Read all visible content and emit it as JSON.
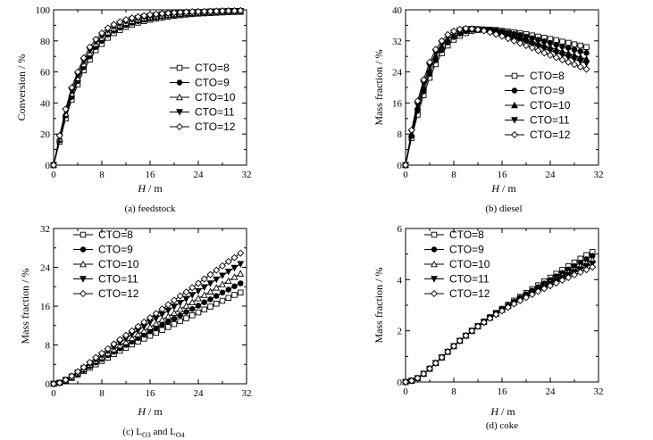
{
  "chart_data": [
    {
      "id": "a",
      "type": "line",
      "ylabel": "Conversion / %",
      "xlabel_italic": "H",
      "xlabel_rest": " / m",
      "caption": "(a) feedstock",
      "caption_sub": [],
      "xlim": [
        0,
        32
      ],
      "ylim": [
        0,
        100
      ],
      "xticks": [
        0,
        8,
        16,
        24,
        32
      ],
      "yticks": [
        0,
        20,
        40,
        60,
        80,
        100
      ],
      "legend_position": "center-right",
      "x": [
        0,
        1,
        2,
        3,
        4,
        5,
        6,
        7,
        8,
        9,
        10,
        11,
        12,
        13,
        14,
        15,
        16,
        17,
        18,
        19,
        20,
        21,
        22,
        23,
        24,
        25,
        26,
        27,
        28,
        29,
        30,
        31
      ],
      "series": [
        {
          "name": "CTO=8",
          "marker": "square-open",
          "values": [
            0,
            15,
            30,
            42,
            52,
            61,
            68,
            74,
            78,
            82,
            85,
            87,
            89,
            90.5,
            91.7,
            92.7,
            93.6,
            94.4,
            95,
            95.6,
            96.1,
            96.5,
            96.9,
            97.2,
            97.5,
            97.7,
            97.9,
            98.1,
            98.3,
            98.5,
            98.6,
            98.7
          ]
        },
        {
          "name": "CTO=9",
          "marker": "circle-filled",
          "values": [
            0,
            16,
            32,
            44,
            54,
            63,
            70,
            76,
            80,
            84,
            86.5,
            88.5,
            90.2,
            91.6,
            92.7,
            93.6,
            94.4,
            95.1,
            95.7,
            96.2,
            96.6,
            97,
            97.3,
            97.6,
            97.8,
            98,
            98.2,
            98.4,
            98.5,
            98.7,
            98.8,
            98.9
          ]
        },
        {
          "name": "CTO=10",
          "marker": "triangle-open",
          "values": [
            0,
            17,
            33,
            46,
            56,
            65,
            72,
            78,
            82,
            85.5,
            88,
            90,
            91.5,
            92.8,
            93.8,
            94.6,
            95.3,
            95.9,
            96.4,
            96.8,
            97.2,
            97.5,
            97.8,
            98,
            98.2,
            98.4,
            98.5,
            98.7,
            98.8,
            98.9,
            99,
            99.1
          ]
        },
        {
          "name": "CTO=11",
          "marker": "triangle-down-filled",
          "values": [
            0,
            18,
            35,
            48,
            58,
            67,
            74,
            79.5,
            83.5,
            87,
            89.3,
            91.1,
            92.6,
            93.8,
            94.7,
            95.5,
            96.1,
            96.6,
            97.1,
            97.4,
            97.7,
            98,
            98.2,
            98.4,
            98.6,
            98.7,
            98.9,
            99,
            99.1,
            99.2,
            99.3,
            99.3
          ]
        },
        {
          "name": "CTO=12",
          "marker": "diamond-open",
          "values": [
            0,
            19,
            36,
            50,
            60,
            69,
            76,
            81,
            85,
            88.3,
            90.5,
            92.2,
            93.6,
            94.7,
            95.5,
            96.2,
            96.8,
            97.2,
            97.6,
            97.9,
            98.2,
            98.4,
            98.6,
            98.8,
            98.9,
            99,
            99.1,
            99.2,
            99.3,
            99.4,
            99.4,
            99.5
          ]
        }
      ]
    },
    {
      "id": "b",
      "type": "line",
      "ylabel": "Mass fraction / %",
      "xlabel_italic": "H",
      "xlabel_rest": " / m",
      "caption": "(b) diesel",
      "caption_sub": [],
      "xlim": [
        0,
        32
      ],
      "ylim": [
        0,
        40
      ],
      "xticks": [
        0,
        8,
        16,
        24,
        32
      ],
      "yticks": [
        0,
        8,
        16,
        24,
        32,
        40
      ],
      "legend_position": "lower-right",
      "x": [
        0,
        1,
        2,
        3,
        4,
        5,
        6,
        7,
        8,
        9,
        10,
        11,
        12,
        13,
        14,
        15,
        16,
        17,
        18,
        19,
        20,
        21,
        22,
        23,
        24,
        25,
        26,
        27,
        28,
        29,
        30
      ],
      "series": [
        {
          "name": "CTO=8",
          "marker": "square-open",
          "values": [
            0,
            7,
            13,
            18,
            22.5,
            26,
            28.8,
            30.8,
            32.3,
            33.3,
            34,
            34.5,
            34.8,
            34.9,
            34.9,
            34.8,
            34.6,
            34.4,
            34.2,
            34,
            33.7,
            33.4,
            33.1,
            32.8,
            32.5,
            32.2,
            31.8,
            31.5,
            31.1,
            30.8,
            30.4
          ]
        },
        {
          "name": "CTO=9",
          "marker": "circle-filled",
          "values": [
            0,
            7.5,
            14,
            19,
            23.5,
            27,
            29.6,
            31.6,
            33,
            33.9,
            34.5,
            34.8,
            35,
            35,
            34.9,
            34.7,
            34.4,
            34.1,
            33.8,
            33.5,
            33.1,
            32.7,
            32.3,
            31.9,
            31.5,
            31,
            30.6,
            30.2,
            29.7,
            29.3,
            28.9
          ]
        },
        {
          "name": "CTO=10",
          "marker": "triangle-filled",
          "values": [
            0,
            8,
            15,
            20,
            24.5,
            28,
            30.5,
            32.3,
            33.6,
            34.4,
            34.8,
            35,
            35,
            34.9,
            34.7,
            34.4,
            34,
            33.6,
            33.2,
            32.8,
            32.3,
            31.8,
            31.3,
            30.8,
            30.3,
            29.8,
            29.3,
            28.8,
            28.3,
            27.8,
            27.3
          ]
        },
        {
          "name": "CTO=11",
          "marker": "triangle-down-filled",
          "values": [
            0,
            8.5,
            15.5,
            21,
            25.5,
            29,
            31.3,
            33,
            34.1,
            34.7,
            35,
            35.1,
            35,
            34.8,
            34.5,
            34.1,
            33.7,
            33.2,
            32.7,
            32.2,
            31.7,
            31.1,
            30.6,
            30,
            29.5,
            28.9,
            28.4,
            27.8,
            27.3,
            26.7,
            26.2
          ]
        },
        {
          "name": "CTO=12",
          "marker": "diamond-open",
          "values": [
            0,
            9,
            16.5,
            22,
            26.5,
            29.8,
            32,
            33.6,
            34.5,
            35,
            35.2,
            35.1,
            34.9,
            34.6,
            34.2,
            33.7,
            33.2,
            32.6,
            32,
            31.4,
            30.8,
            30.2,
            29.5,
            28.9,
            28.3,
            27.7,
            27.1,
            26.5,
            25.9,
            25.3,
            24.7
          ]
        }
      ]
    },
    {
      "id": "c",
      "type": "line",
      "ylabel": "Mass fraction / %",
      "xlabel_italic": "H",
      "xlabel_rest": " / m",
      "caption": "(c) L",
      "caption_sub": [
        "O3",
        " and L",
        "O4"
      ],
      "xlim": [
        0,
        32
      ],
      "ylim": [
        0,
        32
      ],
      "xticks": [
        0,
        8,
        16,
        24,
        32
      ],
      "yticks": [
        0,
        8,
        16,
        24,
        32
      ],
      "legend_position": "top-left",
      "x": [
        0,
        1,
        2,
        3,
        4,
        5,
        6,
        7,
        8,
        9,
        10,
        11,
        12,
        13,
        14,
        15,
        16,
        17,
        18,
        19,
        20,
        21,
        22,
        23,
        24,
        25,
        26,
        27,
        28,
        29,
        30,
        31
      ],
      "series": [
        {
          "name": "CTO=8",
          "marker": "square-open",
          "values": [
            0,
            0.2,
            0.6,
            1.2,
            1.9,
            2.6,
            3.3,
            4,
            4.7,
            5.4,
            6.1,
            6.8,
            7.4,
            8.1,
            8.7,
            9.3,
            9.9,
            10.5,
            11.1,
            11.7,
            12.3,
            12.9,
            13.5,
            14.1,
            14.7,
            15.3,
            15.9,
            16.5,
            17.1,
            17.7,
            18.3,
            18.8
          ]
        },
        {
          "name": "CTO=9",
          "marker": "circle-filled",
          "values": [
            0,
            0.2,
            0.7,
            1.3,
            2,
            2.8,
            3.6,
            4.4,
            5.1,
            5.9,
            6.6,
            7.3,
            8,
            8.7,
            9.4,
            10.1,
            10.8,
            11.4,
            12.1,
            12.8,
            13.4,
            14.1,
            14.8,
            15.4,
            16.1,
            16.8,
            17.4,
            18.1,
            18.8,
            19.4,
            20.1,
            20.7
          ]
        },
        {
          "name": "CTO=10",
          "marker": "triangle-open",
          "values": [
            0,
            0.2,
            0.7,
            1.4,
            2.2,
            3,
            3.9,
            4.7,
            5.5,
            6.3,
            7.1,
            7.9,
            8.6,
            9.4,
            10.2,
            10.9,
            11.7,
            12.4,
            13.2,
            13.9,
            14.6,
            15.4,
            16.1,
            16.8,
            17.6,
            18.3,
            19,
            19.8,
            20.5,
            21.2,
            22,
            22.7
          ]
        },
        {
          "name": "CTO=11",
          "marker": "triangle-down-filled",
          "values": [
            0,
            0.2,
            0.8,
            1.5,
            2.3,
            3.2,
            4.1,
            5,
            5.9,
            6.8,
            7.6,
            8.5,
            9.3,
            10.2,
            11,
            11.8,
            12.7,
            13.5,
            14.3,
            15.1,
            15.9,
            16.7,
            17.5,
            18.3,
            19.1,
            19.9,
            20.7,
            21.5,
            22.3,
            23.1,
            23.9,
            24.7
          ]
        },
        {
          "name": "CTO=12",
          "marker": "diamond-open",
          "values": [
            0,
            0.2,
            0.8,
            1.6,
            2.5,
            3.4,
            4.4,
            5.4,
            6.3,
            7.2,
            8.2,
            9.1,
            10,
            10.9,
            11.8,
            12.7,
            13.6,
            14.5,
            15.4,
            16.3,
            17.2,
            18.1,
            18.9,
            19.8,
            20.7,
            21.6,
            22.5,
            23.4,
            24.3,
            25.2,
            26,
            26.9
          ]
        }
      ]
    },
    {
      "id": "d",
      "type": "line",
      "ylabel": "Mass fraction / %",
      "xlabel_italic": "H",
      "xlabel_rest": " / m",
      "caption": "(d) coke",
      "caption_sub": [],
      "xlim": [
        0,
        32
      ],
      "ylim": [
        0,
        6
      ],
      "xticks": [
        0,
        8,
        16,
        24,
        32
      ],
      "yticks": [
        0,
        2,
        4,
        6
      ],
      "legend_position": "top-left",
      "x": [
        0,
        1,
        2,
        3,
        4,
        5,
        6,
        7,
        8,
        9,
        10,
        11,
        12,
        13,
        14,
        15,
        16,
        17,
        18,
        19,
        20,
        21,
        22,
        23,
        24,
        25,
        26,
        27,
        28,
        29,
        30,
        31
      ],
      "series": [
        {
          "name": "CTO=8",
          "marker": "square-open",
          "values": [
            0,
            0.05,
            0.15,
            0.32,
            0.52,
            0.74,
            0.96,
            1.18,
            1.4,
            1.61,
            1.81,
            2,
            2.18,
            2.36,
            2.53,
            2.7,
            2.86,
            3.02,
            3.18,
            3.33,
            3.48,
            3.63,
            3.78,
            3.93,
            4.08,
            4.23,
            4.38,
            4.52,
            4.67,
            4.82,
            4.96,
            5.08
          ]
        },
        {
          "name": "CTO=9",
          "marker": "circle-filled",
          "values": [
            0,
            0.05,
            0.15,
            0.32,
            0.52,
            0.74,
            0.96,
            1.18,
            1.4,
            1.61,
            1.81,
            2,
            2.18,
            2.35,
            2.52,
            2.68,
            2.84,
            2.99,
            3.14,
            3.29,
            3.43,
            3.57,
            3.71,
            3.85,
            3.99,
            4.13,
            4.26,
            4.4,
            4.53,
            4.67,
            4.8,
            4.93
          ]
        },
        {
          "name": "CTO=10",
          "marker": "triangle-open",
          "values": [
            0,
            0.05,
            0.15,
            0.32,
            0.52,
            0.74,
            0.96,
            1.18,
            1.4,
            1.61,
            1.81,
            2,
            2.18,
            2.35,
            2.51,
            2.67,
            2.82,
            2.97,
            3.11,
            3.25,
            3.39,
            3.52,
            3.65,
            3.78,
            3.91,
            4.03,
            4.16,
            4.28,
            4.41,
            4.53,
            4.65,
            4.77
          ]
        },
        {
          "name": "CTO=11",
          "marker": "triangle-down-filled",
          "values": [
            0,
            0.05,
            0.15,
            0.32,
            0.52,
            0.74,
            0.96,
            1.18,
            1.4,
            1.61,
            1.81,
            2,
            2.18,
            2.34,
            2.5,
            2.65,
            2.8,
            2.94,
            3.08,
            3.21,
            3.34,
            3.47,
            3.59,
            3.71,
            3.83,
            3.95,
            4.07,
            4.18,
            4.3,
            4.41,
            4.53,
            4.63
          ]
        },
        {
          "name": "CTO=12",
          "marker": "diamond-open",
          "values": [
            0,
            0.05,
            0.15,
            0.32,
            0.52,
            0.74,
            0.96,
            1.18,
            1.4,
            1.61,
            1.81,
            2,
            2.17,
            2.33,
            2.49,
            2.64,
            2.78,
            2.92,
            3.05,
            3.18,
            3.3,
            3.42,
            3.54,
            3.65,
            3.76,
            3.87,
            3.98,
            4.08,
            4.19,
            4.29,
            4.39,
            4.49
          ]
        }
      ]
    }
  ]
}
